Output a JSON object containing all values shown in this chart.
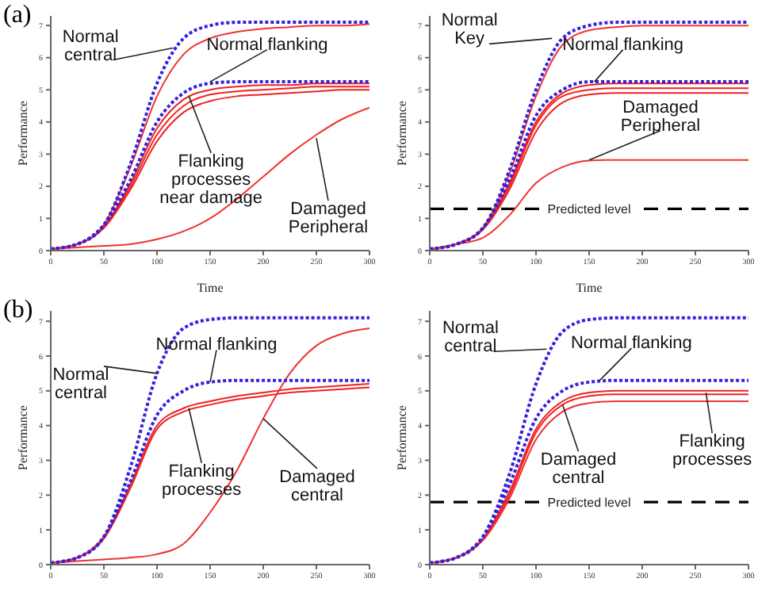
{
  "chart_data": [
    {
      "type": "line",
      "xlabel": "Time",
      "ylabel": "Performance",
      "x": [
        0,
        25,
        50,
        75,
        100,
        125,
        150,
        175,
        200,
        225,
        250,
        275,
        300
      ],
      "xlim": [
        0,
        300
      ],
      "xticks": [
        0,
        50,
        100,
        150,
        200,
        250,
        300
      ],
      "ylim": [
        0,
        7.3
      ],
      "yticks": [
        0,
        1,
        2,
        3,
        4,
        5,
        6,
        7
      ],
      "marker": "none",
      "series": [
        {
          "color": "#ee3333",
          "line_style": "solid",
          "values": [
            0.05,
            0.2,
            0.8,
            2.6,
            4.8,
            6.1,
            6.6,
            6.8,
            6.9,
            6.95,
            7.0,
            7.0,
            7.05
          ]
        },
        {
          "color": "#ee2222",
          "line_style": "solid",
          "values": [
            0.05,
            0.2,
            0.75,
            2.1,
            3.8,
            4.7,
            5.0,
            5.1,
            5.15,
            5.15,
            5.2,
            5.2,
            5.2
          ]
        },
        {
          "color": "#ee2222",
          "line_style": "solid",
          "values": [
            0.05,
            0.2,
            0.72,
            2.0,
            3.6,
            4.5,
            4.85,
            4.95,
            5.0,
            5.05,
            5.1,
            5.1,
            5.1
          ]
        },
        {
          "color": "#ee2222",
          "line_style": "solid",
          "values": [
            0.05,
            0.2,
            0.7,
            1.9,
            3.4,
            4.3,
            4.65,
            4.8,
            4.85,
            4.9,
            4.95,
            5.0,
            5.0
          ]
        },
        {
          "color": "#ee3333",
          "line_style": "solid",
          "values": [
            0.05,
            0.1,
            0.15,
            0.2,
            0.35,
            0.6,
            1.0,
            1.6,
            2.3,
            3.0,
            3.6,
            4.1,
            4.45
          ]
        },
        {
          "color": "#3322dd",
          "line_style": "dotted",
          "values": [
            0.05,
            0.2,
            0.8,
            2.7,
            5.2,
            6.6,
            7.0,
            7.1,
            7.1,
            7.1,
            7.1,
            7.1,
            7.1
          ]
        },
        {
          "color": "#3322dd",
          "line_style": "dotted",
          "values": [
            0.05,
            0.2,
            0.8,
            2.2,
            4.0,
            4.9,
            5.2,
            5.25,
            5.25,
            5.25,
            5.25,
            5.25,
            5.25
          ]
        }
      ],
      "annotations": [
        "(a)",
        {
          "text": "Normal\ncentral",
          "x": 115,
          "y": 6.3
        },
        {
          "text": "Normal flanking",
          "x": 150,
          "y": 5.25
        },
        {
          "text": "Flanking\nprocesses\nnear damage",
          "x": 130,
          "y": 4.8
        },
        {
          "text": "Damaged\nPeripheral",
          "x": 250,
          "y": 3.5
        }
      ]
    },
    {
      "type": "line",
      "xlabel": "Time",
      "ylabel": "Performance",
      "x": [
        0,
        25,
        50,
        75,
        100,
        125,
        150,
        175,
        200,
        225,
        250,
        275,
        300
      ],
      "xlim": [
        0,
        300
      ],
      "xticks": [
        0,
        50,
        100,
        150,
        200,
        250,
        300
      ],
      "ylim": [
        0,
        7.3
      ],
      "yticks": [
        0,
        1,
        2,
        3,
        4,
        5,
        6,
        7
      ],
      "marker": "none",
      "series": [
        {
          "color": "#ee3333",
          "line_style": "solid",
          "values": [
            0.05,
            0.2,
            0.7,
            2.4,
            4.8,
            6.4,
            6.85,
            6.95,
            7.0,
            7.0,
            7.0,
            7.0,
            7.0
          ]
        },
        {
          "color": "#ee2222",
          "line_style": "solid",
          "values": [
            0.05,
            0.2,
            0.7,
            2.1,
            4.0,
            4.9,
            5.15,
            5.2,
            5.2,
            5.2,
            5.2,
            5.2,
            5.2
          ]
        },
        {
          "color": "#ee2222",
          "line_style": "solid",
          "values": [
            0.05,
            0.2,
            0.68,
            2.0,
            3.9,
            4.8,
            5.0,
            5.05,
            5.05,
            5.05,
            5.05,
            5.05,
            5.05
          ]
        },
        {
          "color": "#ee2222",
          "line_style": "solid",
          "values": [
            0.05,
            0.2,
            0.65,
            1.9,
            3.7,
            4.6,
            4.85,
            4.9,
            4.9,
            4.9,
            4.9,
            4.9,
            4.9
          ]
        },
        {
          "color": "#ee3333",
          "line_style": "solid",
          "values": [
            0.05,
            0.2,
            0.4,
            1.1,
            2.1,
            2.6,
            2.8,
            2.82,
            2.82,
            2.82,
            2.82,
            2.82,
            2.82
          ]
        },
        {
          "color": "#3322dd",
          "line_style": "dotted",
          "values": [
            0.05,
            0.2,
            0.7,
            2.5,
            5.0,
            6.6,
            7.0,
            7.1,
            7.1,
            7.1,
            7.1,
            7.1,
            7.1
          ]
        },
        {
          "color": "#3322dd",
          "line_style": "dotted",
          "values": [
            0.05,
            0.2,
            0.7,
            2.2,
            4.2,
            5.0,
            5.25,
            5.25,
            5.25,
            5.25,
            5.25,
            5.25,
            5.25
          ]
        }
      ],
      "ref_lines": [
        {
          "axis": "y",
          "value": 1.3,
          "label": "Predicted level",
          "color": "#000000",
          "line_style": "dashed"
        }
      ],
      "annotations": [
        {
          "text": "Normal\nKey",
          "x": 115,
          "y": 6.6
        },
        {
          "text": "Normal flanking",
          "x": 155,
          "y": 5.25
        },
        {
          "text": "Damaged\nPeripheral",
          "x": 150,
          "y": 2.82
        }
      ]
    },
    {
      "type": "line",
      "ylabel": "Performance",
      "x": [
        0,
        25,
        50,
        75,
        100,
        125,
        150,
        175,
        200,
        225,
        250,
        275,
        300
      ],
      "xlim": [
        0,
        300
      ],
      "xticks": [
        0,
        50,
        100,
        150,
        200,
        250,
        300
      ],
      "ylim": [
        0,
        7.3
      ],
      "yticks": [
        0,
        1,
        2,
        3,
        4,
        5,
        6,
        7
      ],
      "marker": "none",
      "series": [
        {
          "color": "#ee2222",
          "line_style": "solid",
          "values": [
            0.05,
            0.2,
            0.8,
            2.3,
            4.0,
            4.5,
            4.7,
            4.85,
            4.95,
            5.05,
            5.1,
            5.15,
            5.2
          ]
        },
        {
          "color": "#ee2222",
          "line_style": "solid",
          "values": [
            0.05,
            0.2,
            0.75,
            2.2,
            3.9,
            4.4,
            4.6,
            4.75,
            4.85,
            4.95,
            5.0,
            5.05,
            5.1
          ]
        },
        {
          "color": "#ee3333",
          "line_style": "solid",
          "values": [
            0.05,
            0.1,
            0.15,
            0.2,
            0.3,
            0.6,
            1.5,
            2.7,
            4.2,
            5.5,
            6.3,
            6.65,
            6.8
          ]
        },
        {
          "color": "#3322dd",
          "line_style": "dotted",
          "values": [
            0.05,
            0.2,
            0.8,
            2.8,
            5.5,
            6.8,
            7.05,
            7.1,
            7.1,
            7.1,
            7.1,
            7.1,
            7.1
          ]
        },
        {
          "color": "#3322dd",
          "line_style": "dotted",
          "values": [
            0.05,
            0.2,
            0.8,
            2.4,
            4.3,
            5.0,
            5.25,
            5.3,
            5.3,
            5.3,
            5.3,
            5.3,
            5.3
          ]
        }
      ],
      "annotations": [
        "(b)",
        {
          "text": "Normal\ncentral",
          "x": 100,
          "y": 5.5
        },
        {
          "text": "Normal flanking",
          "x": 150,
          "y": 5.25
        },
        {
          "text": "Flanking\nprocesses",
          "x": 130,
          "y": 4.5
        },
        {
          "text": "Damaged\ncentral",
          "x": 200,
          "y": 4.2
        }
      ]
    },
    {
      "type": "line",
      "ylabel": "Performance",
      "x": [
        0,
        25,
        50,
        75,
        100,
        125,
        150,
        175,
        200,
        225,
        250,
        275,
        300
      ],
      "xlim": [
        0,
        300
      ],
      "xticks": [
        0,
        50,
        100,
        150,
        200,
        250,
        300
      ],
      "ylim": [
        0,
        7.3
      ],
      "yticks": [
        0,
        1,
        2,
        3,
        4,
        5,
        6,
        7
      ],
      "marker": "none",
      "series": [
        {
          "color": "#ee2222",
          "line_style": "solid",
          "values": [
            0.05,
            0.2,
            0.75,
            2.1,
            3.9,
            4.7,
            4.95,
            5.0,
            5.0,
            5.0,
            5.0,
            5.0,
            5.0
          ]
        },
        {
          "color": "#ee2222",
          "line_style": "solid",
          "values": [
            0.05,
            0.2,
            0.72,
            2.0,
            3.8,
            4.6,
            4.85,
            4.9,
            4.9,
            4.9,
            4.9,
            4.9,
            4.9
          ]
        },
        {
          "color": "#ee3333",
          "line_style": "solid",
          "values": [
            0.05,
            0.2,
            0.7,
            1.9,
            3.6,
            4.4,
            4.65,
            4.7,
            4.7,
            4.7,
            4.7,
            4.7,
            4.7
          ]
        },
        {
          "color": "#3322dd",
          "line_style": "dotted",
          "values": [
            0.05,
            0.2,
            0.8,
            2.6,
            5.2,
            6.7,
            7.05,
            7.1,
            7.1,
            7.1,
            7.1,
            7.1,
            7.1
          ]
        },
        {
          "color": "#3322dd",
          "line_style": "dotted",
          "values": [
            0.05,
            0.2,
            0.8,
            2.3,
            4.2,
            5.0,
            5.25,
            5.3,
            5.3,
            5.3,
            5.3,
            5.3,
            5.3
          ]
        }
      ],
      "ref_lines": [
        {
          "axis": "y",
          "value": 1.8,
          "label": "Predicted level",
          "color": "#000000",
          "line_style": "dashed"
        }
      ],
      "annotations": [
        {
          "text": "Normal\ncentral",
          "x": 110,
          "y": 6.2
        },
        {
          "text": "Normal flanking",
          "x": 160,
          "y": 5.3
        },
        {
          "text": "Damaged\ncentral",
          "x": 125,
          "y": 4.6
        },
        {
          "text": "Flanking\nprocesses",
          "x": 260,
          "y": 4.95
        }
      ]
    }
  ]
}
